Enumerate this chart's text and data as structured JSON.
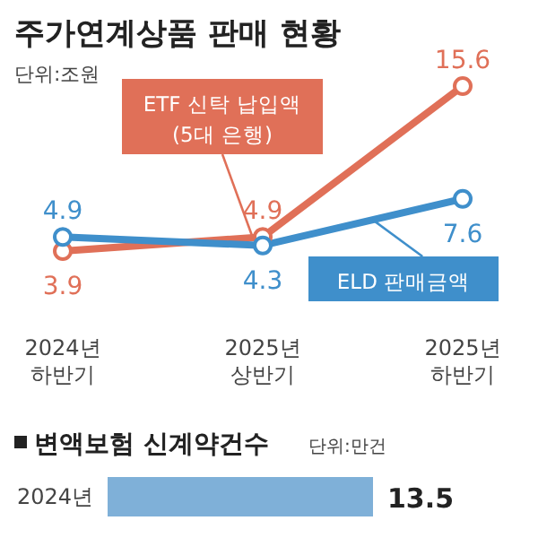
{
  "chart_data": [
    {
      "type": "line",
      "title": "주가연계상품 판매 현황",
      "subtitle": "단위:조원",
      "categories": [
        "2024년 하반기",
        "2025년 상반기",
        "2025년 하반기"
      ],
      "marker": "circle",
      "data_labels": true,
      "series": [
        {
          "name": "ETF 신탁 납입액 (5대 은행)",
          "color": "#e07058",
          "values": [
            3.9,
            4.9,
            15.6
          ]
        },
        {
          "name": "ELD 판매금액",
          "color": "#3f8fcb",
          "values": [
            4.9,
            4.3,
            7.6
          ]
        }
      ]
    },
    {
      "type": "bar",
      "orientation": "horizontal",
      "title": "변액보험 신계약건수",
      "subtitle": "단위:만건",
      "categories": [
        "2024년"
      ],
      "values": [
        13.5
      ],
      "color": "#7fb0d8",
      "data_labels": true
    }
  ]
}
